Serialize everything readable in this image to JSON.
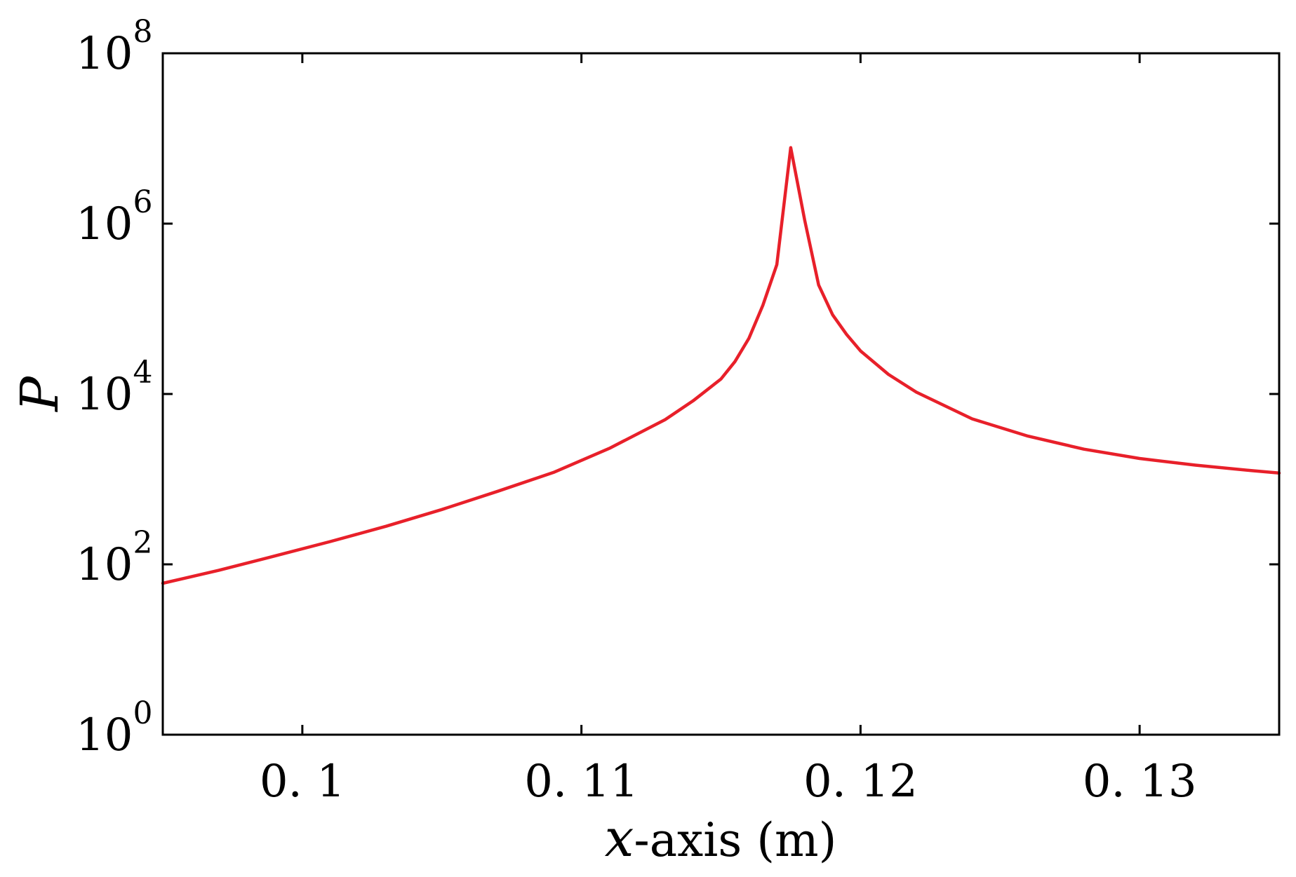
{
  "chart_data": {
    "type": "line",
    "title": "",
    "xlabel_var": "x",
    "xlabel_rest": "-axis (m)",
    "ylabel": "P",
    "xlim": [
      0.095,
      0.135
    ],
    "ylim": [
      1,
      100000000
    ],
    "yscale": "log",
    "grid": false,
    "x_ticks": [
      0.1,
      0.11,
      0.12,
      0.13
    ],
    "x_tick_labels": [
      "0. 1",
      "0. 11",
      "0. 12",
      "0. 13"
    ],
    "y_ticks": [
      {
        "value": 1,
        "base": "10",
        "exp": "0"
      },
      {
        "value": 100,
        "base": "10",
        "exp": "2"
      },
      {
        "value": 10000,
        "base": "10",
        "exp": "4"
      },
      {
        "value": 1000000,
        "base": "10",
        "exp": "6"
      },
      {
        "value": 100000000,
        "base": "10",
        "exp": "8"
      }
    ],
    "series": [
      {
        "color": "#e8202a",
        "x": [
          0.095,
          0.097,
          0.099,
          0.101,
          0.103,
          0.105,
          0.107,
          0.109,
          0.111,
          0.113,
          0.114,
          0.115,
          0.1155,
          0.116,
          0.1165,
          0.117,
          0.1175,
          0.118,
          0.1185,
          0.119,
          0.1195,
          0.12,
          0.121,
          0.122,
          0.124,
          0.126,
          0.128,
          0.13,
          0.132,
          0.134,
          0.135
        ],
        "y": [
          60,
          85,
          125,
          185,
          280,
          440,
          720,
          1200,
          2300,
          5000,
          8300,
          15000,
          24000,
          45000,
          110000,
          330000,
          7800000,
          1100000,
          190000,
          85000,
          50000,
          32000,
          17000,
          10500,
          5100,
          3200,
          2250,
          1750,
          1460,
          1260,
          1180
        ]
      }
    ]
  }
}
